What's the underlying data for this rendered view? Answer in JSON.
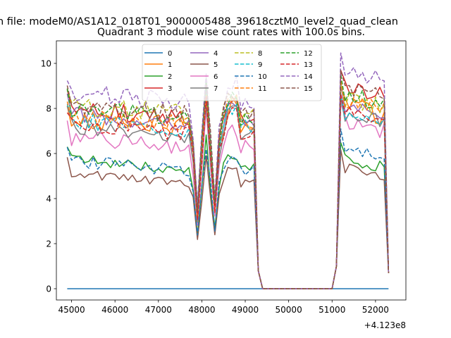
{
  "figure": {
    "suptitle": "n file: modeM0/AS1A12_018T01_9000005488_39618cztM0_level2_quad_clean",
    "title": "Quadrant 3 module wise count rates with 100.0s bins."
  },
  "chart_data": {
    "type": "line",
    "title": "Quadrant 3 module wise count rates with 100.0s bins.",
    "xlabel": "",
    "ylabel": "",
    "x_offset_label": "+4.123e8",
    "xlim": [
      44650,
      52700
    ],
    "ylim": [
      -0.5,
      11.0
    ],
    "xticks": [
      45000,
      46000,
      47000,
      48000,
      49000,
      50000,
      51000,
      52000
    ],
    "xtick_labels": [
      "45000",
      "46000",
      "47000",
      "48000",
      "49000",
      "50000",
      "51000",
      "52000"
    ],
    "yticks": [
      0,
      2,
      4,
      6,
      8,
      10
    ],
    "ytick_labels": [
      "0",
      "2",
      "4",
      "6",
      "8",
      "10"
    ],
    "grid": false,
    "legend_position": "top-center",
    "legend_columns": 4,
    "x_start": 44900,
    "x_step": 100,
    "gap": {
      "from": 49400,
      "to": 51000,
      "value": 0
    },
    "series": [
      {
        "name": "0",
        "color": "#1f77b4",
        "dash": "solid",
        "level": 0,
        "gap_level": 0,
        "noise": 0,
        "seed": 1
      },
      {
        "name": "1",
        "color": "#ff7f0e",
        "dash": "solid",
        "level": 7.2,
        "gap_level": 8.1,
        "noise": 0.45,
        "seed": 2
      },
      {
        "name": "2",
        "color": "#2ca02c",
        "dash": "solid",
        "level": 5.35,
        "gap_level": 5.8,
        "noise": 0.25,
        "seed": 3
      },
      {
        "name": "3",
        "color": "#d62728",
        "dash": "solid",
        "level": 7.6,
        "gap_level": 9.0,
        "noise": 0.4,
        "seed": 4
      },
      {
        "name": "4",
        "color": "#9467bd",
        "dash": "solid",
        "level": 7.4,
        "gap_level": 8.2,
        "noise": 0.4,
        "seed": 5
      },
      {
        "name": "5",
        "color": "#8c564b",
        "dash": "solid",
        "level": 4.7,
        "gap_level": 5.4,
        "noise": 0.22,
        "seed": 6
      },
      {
        "name": "6",
        "color": "#e377c2",
        "dash": "solid",
        "level": 6.3,
        "gap_level": 7.4,
        "noise": 0.35,
        "seed": 7
      },
      {
        "name": "7",
        "color": "#7f7f7f",
        "dash": "solid",
        "level": 6.9,
        "gap_level": 7.7,
        "noise": 0.4,
        "seed": 8
      },
      {
        "name": "8",
        "color": "#bcbd22",
        "dash": "dashed",
        "level": 7.8,
        "gap_level": 8.4,
        "noise": 0.45,
        "seed": 9
      },
      {
        "name": "9",
        "color": "#17becf",
        "dash": "dashed",
        "level": 7.1,
        "gap_level": 7.9,
        "noise": 0.4,
        "seed": 10
      },
      {
        "name": "10",
        "color": "#1f77b4",
        "dash": "dashed",
        "level": 5.3,
        "gap_level": 6.2,
        "noise": 0.3,
        "seed": 11
      },
      {
        "name": "11",
        "color": "#ff7f0e",
        "dash": "dashed",
        "level": 7.3,
        "gap_level": 8.3,
        "noise": 0.4,
        "seed": 12
      },
      {
        "name": "12",
        "color": "#2ca02c",
        "dash": "dashed",
        "level": 7.6,
        "gap_level": 8.6,
        "noise": 0.4,
        "seed": 13
      },
      {
        "name": "13",
        "color": "#d62728",
        "dash": "dashed",
        "level": 6.9,
        "gap_level": 7.8,
        "noise": 0.35,
        "seed": 14
      },
      {
        "name": "14",
        "color": "#9467bd",
        "dash": "dashed",
        "level": 8.3,
        "gap_level": 9.6,
        "noise": 0.45,
        "seed": 15
      },
      {
        "name": "15",
        "color": "#8c564b",
        "dash": "dashed",
        "level": 7.8,
        "gap_level": 8.9,
        "noise": 0.4,
        "seed": 16
      }
    ]
  }
}
